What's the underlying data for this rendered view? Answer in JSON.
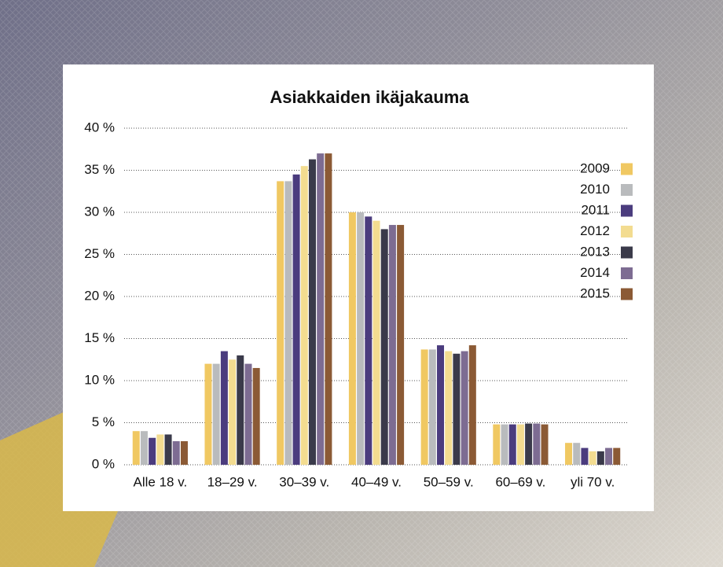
{
  "chart_data": {
    "type": "bar",
    "title": "Asiakkaiden ikäjakauma",
    "categories": [
      "Alle 18 v.",
      "18–29 v.",
      "30–39 v.",
      "40–49 v.",
      "50–59 v.",
      "60–69 v.",
      "yli 70 v."
    ],
    "series": [
      {
        "name": "2009",
        "color": "#f0c862",
        "values": [
          4.0,
          12.0,
          33.7,
          30.0,
          13.7,
          4.8,
          2.6
        ]
      },
      {
        "name": "2010",
        "color": "#b9bbbd",
        "values": [
          4.0,
          12.0,
          33.7,
          30.0,
          13.7,
          4.8,
          2.6
        ]
      },
      {
        "name": "2011",
        "color": "#4b3c7e",
        "values": [
          3.2,
          13.5,
          34.5,
          29.5,
          14.2,
          4.8,
          2.0
        ]
      },
      {
        "name": "2012",
        "color": "#f3dc90",
        "values": [
          3.6,
          12.5,
          35.5,
          29.0,
          13.5,
          4.8,
          1.6
        ]
      },
      {
        "name": "2013",
        "color": "#3a3a4a",
        "values": [
          3.6,
          13.0,
          36.3,
          28.0,
          13.2,
          4.9,
          1.6
        ]
      },
      {
        "name": "2014",
        "color": "#7d6c92",
        "values": [
          2.8,
          12.0,
          37.0,
          28.5,
          13.5,
          4.9,
          2.0
        ]
      },
      {
        "name": "2015",
        "color": "#8b5a35",
        "values": [
          2.8,
          11.5,
          37.0,
          28.5,
          14.2,
          4.8,
          2.0
        ]
      }
    ],
    "ylim": [
      0,
      40
    ],
    "yticks": [
      {
        "value": 0,
        "label": "0 %"
      },
      {
        "value": 5,
        "label": "5 %"
      },
      {
        "value": 10,
        "label": "10 %"
      },
      {
        "value": 15,
        "label": "15 %"
      },
      {
        "value": 20,
        "label": "20 %"
      },
      {
        "value": 25,
        "label": "25 %"
      },
      {
        "value": 30,
        "label": "30 %"
      },
      {
        "value": 35,
        "label": "35 %"
      },
      {
        "value": 40,
        "label": "40 %"
      }
    ],
    "grid": true,
    "legend": "right"
  }
}
